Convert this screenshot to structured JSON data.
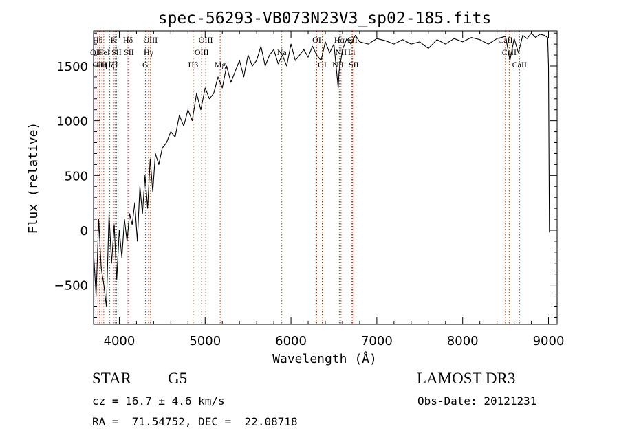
{
  "colors": {
    "spectrum": "#000000",
    "line_marker": "#cc2200",
    "axes": "#000000",
    "background": "#ffffff"
  },
  "info": {
    "object_class": "STAR",
    "subclass": "G5",
    "survey": "LAMOST DR3",
    "redshift": "cz = 16.7 ± 4.6 km/s",
    "obs_date": "Obs-Date: 20121231",
    "coords": "RA =  71.54752, DEC =  22.08718"
  },
  "chart_data": {
    "type": "line",
    "title": "spec-56293-VB073N23V3_sp02-185.fits",
    "xlabel": "Wavelength (Å)",
    "ylabel": "Flux (relative)",
    "xlim": [
      3700,
      9100
    ],
    "ylim": [
      -860,
      1820
    ],
    "xticks": [
      4000,
      5000,
      6000,
      7000,
      8000,
      9000
    ],
    "yticks": [
      -500,
      0,
      500,
      1000,
      1500
    ],
    "xminor_step": 200,
    "yminor_step": 100,
    "series": [
      {
        "name": "flux",
        "x": [
          3700,
          3730,
          3760,
          3790,
          3820,
          3850,
          3880,
          3910,
          3940,
          3970,
          4000,
          4030,
          4060,
          4090,
          4120,
          4150,
          4180,
          4210,
          4240,
          4270,
          4300,
          4330,
          4360,
          4390,
          4420,
          4460,
          4500,
          4550,
          4600,
          4650,
          4700,
          4750,
          4800,
          4850,
          4900,
          4950,
          5000,
          5050,
          5100,
          5150,
          5200,
          5250,
          5300,
          5350,
          5400,
          5450,
          5500,
          5550,
          5600,
          5650,
          5700,
          5750,
          5800,
          5850,
          5900,
          5950,
          6000,
          6050,
          6100,
          6150,
          6200,
          6250,
          6300,
          6350,
          6400,
          6450,
          6500,
          6550,
          6560,
          6600,
          6650,
          6700,
          6750,
          6800,
          6900,
          7000,
          7100,
          7200,
          7300,
          7400,
          7500,
          7600,
          7700,
          7800,
          7900,
          8000,
          8100,
          8200,
          8300,
          8400,
          8500,
          8550,
          8600,
          8650,
          8700,
          8750,
          8800,
          8850,
          8900,
          8950,
          8990,
          9000,
          9010
        ],
        "y": [
          -200,
          -600,
          100,
          -350,
          -500,
          -700,
          150,
          -300,
          50,
          -450,
          0,
          -250,
          100,
          -100,
          150,
          50,
          250,
          -100,
          400,
          150,
          500,
          200,
          650,
          350,
          700,
          600,
          750,
          800,
          900,
          850,
          1050,
          950,
          1100,
          1000,
          1250,
          1100,
          1300,
          1200,
          1250,
          1400,
          1300,
          1500,
          1350,
          1450,
          1550,
          1400,
          1600,
          1500,
          1550,
          1680,
          1500,
          1600,
          1650,
          1520,
          1600,
          1500,
          1700,
          1550,
          1600,
          1650,
          1580,
          1680,
          1600,
          1550,
          1720,
          1620,
          1700,
          1300,
          1450,
          1650,
          1750,
          1700,
          1780,
          1720,
          1700,
          1750,
          1730,
          1700,
          1740,
          1700,
          1720,
          1660,
          1740,
          1700,
          1750,
          1720,
          1760,
          1740,
          1700,
          1750,
          1770,
          1550,
          1750,
          1620,
          1780,
          1750,
          1800,
          1760,
          1790,
          1780,
          1760,
          1500,
          -20
        ]
      }
    ],
    "lines": [
      {
        "wave": 3727,
        "label": "OII",
        "row": 1
      },
      {
        "wave": 3750,
        "label": "Hθ",
        "row": 0
      },
      {
        "wave": 3770,
        "label": "OIII",
        "row": 2
      },
      {
        "wave": 3798,
        "label": "Hη",
        "row": 2
      },
      {
        "wave": 3819,
        "label": "HeI",
        "row": 1
      },
      {
        "wave": 3889,
        "label": "Hζ",
        "row": 2
      },
      {
        "wave": 3933,
        "label": "K",
        "row": 0
      },
      {
        "wave": 3950,
        "label": "H",
        "row": 2
      },
      {
        "wave": 3968,
        "label": "SII",
        "row": 1
      },
      {
        "wave": 4101,
        "label": "Hδ",
        "row": 0
      },
      {
        "wave": 4112,
        "label": "SII",
        "row": 1
      },
      {
        "wave": 4304,
        "label": "G",
        "row": 2
      },
      {
        "wave": 4341,
        "label": "Hγ",
        "row": 1
      },
      {
        "wave": 4363,
        "label": "OIII",
        "row": 0
      },
      {
        "wave": 4861,
        "label": "Hβ",
        "row": 2
      },
      {
        "wave": 4959,
        "label": "OIII",
        "row": 1
      },
      {
        "wave": 5007,
        "label": "OIII",
        "row": 0
      },
      {
        "wave": 5175,
        "label": "Mg",
        "row": 2
      },
      {
        "wave": 5893,
        "label": "Na",
        "row": 1
      },
      {
        "wave": 6300,
        "label": "OI",
        "row": 0
      },
      {
        "wave": 6364,
        "label": "OI",
        "row": 2
      },
      {
        "wave": 6548,
        "label": "NII",
        "row": 2
      },
      {
        "wave": 6563,
        "label": "Hα",
        "row": 0
      },
      {
        "wave": 6583,
        "label": "NII",
        "row": 1
      },
      {
        "wave": 6707,
        "label": "Li",
        "row": 1
      },
      {
        "wave": 6716,
        "label": "SII",
        "row": 0
      },
      {
        "wave": 6731,
        "label": "SII",
        "row": 2
      },
      {
        "wave": 8498,
        "label": "CaII",
        "row": 0
      },
      {
        "wave": 8542,
        "label": "CaII",
        "row": 1
      },
      {
        "wave": 8662,
        "label": "CaII",
        "row": 2
      }
    ]
  }
}
